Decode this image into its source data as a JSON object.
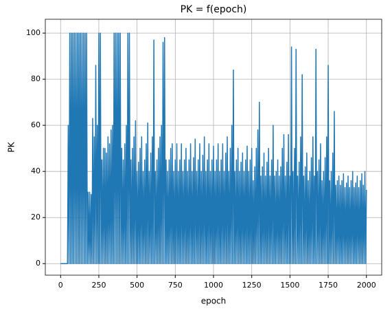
{
  "chart_data": {
    "type": "line",
    "title": "PK = f(epoch)",
    "x_label": "epoch",
    "y_label": "PK",
    "x": [
      0,
      5,
      10,
      15,
      20,
      25,
      30,
      35,
      40,
      45,
      50,
      55,
      60,
      65,
      70,
      75,
      80,
      85,
      90,
      95,
      100,
      105,
      110,
      115,
      120,
      125,
      130,
      135,
      140,
      145,
      150,
      155,
      160,
      165,
      170,
      175,
      180,
      185,
      190,
      195,
      200,
      205,
      210,
      215,
      220,
      225,
      230,
      235,
      240,
      245,
      250,
      255,
      260,
      265,
      270,
      275,
      280,
      285,
      290,
      295,
      300,
      305,
      310,
      315,
      320,
      325,
      330,
      335,
      340,
      345,
      350,
      355,
      360,
      365,
      370,
      375,
      380,
      385,
      390,
      395,
      400,
      405,
      410,
      415,
      420,
      425,
      430,
      435,
      440,
      445,
      450,
      455,
      460,
      465,
      470,
      475,
      480,
      485,
      490,
      495,
      500,
      505,
      510,
      515,
      520,
      525,
      530,
      535,
      540,
      545,
      550,
      555,
      560,
      565,
      570,
      575,
      580,
      585,
      590,
      595,
      600,
      605,
      610,
      615,
      620,
      625,
      630,
      635,
      640,
      645,
      650,
      655,
      660,
      665,
      670,
      675,
      680,
      685,
      690,
      695,
      700,
      705,
      710,
      715,
      720,
      725,
      730,
      735,
      740,
      745,
      750,
      755,
      760,
      765,
      770,
      775,
      780,
      785,
      790,
      795,
      800,
      805,
      810,
      815,
      820,
      825,
      830,
      835,
      840,
      845,
      850,
      855,
      860,
      865,
      870,
      875,
      880,
      885,
      890,
      895,
      900,
      905,
      910,
      915,
      920,
      925,
      930,
      935,
      940,
      945,
      950,
      955,
      960,
      965,
      970,
      975,
      980,
      985,
      990,
      995,
      1000,
      1005,
      1010,
      1015,
      1020,
      1025,
      1030,
      1035,
      1040,
      1045,
      1050,
      1055,
      1060,
      1065,
      1070,
      1075,
      1080,
      1085,
      1090,
      1095,
      1100,
      1105,
      1110,
      1115,
      1120,
      1125,
      1130,
      1135,
      1140,
      1145,
      1150,
      1155,
      1160,
      1165,
      1170,
      1175,
      1180,
      1185,
      1190,
      1195,
      1200,
      1205,
      1210,
      1215,
      1220,
      1225,
      1230,
      1235,
      1240,
      1245,
      1250,
      1255,
      1260,
      1265,
      1270,
      1275,
      1280,
      1285,
      1290,
      1295,
      1300,
      1305,
      1310,
      1315,
      1320,
      1325,
      1330,
      1335,
      1340,
      1345,
      1350,
      1355,
      1360,
      1365,
      1370,
      1375,
      1380,
      1385,
      1390,
      1395,
      1400,
      1405,
      1410,
      1415,
      1420,
      1425,
      1430,
      1435,
      1440,
      1445,
      1450,
      1455,
      1460,
      1465,
      1470,
      1475,
      1480,
      1485,
      1490,
      1495,
      1500,
      1505,
      1510,
      1515,
      1520,
      1525,
      1530,
      1535,
      1540,
      1545,
      1550,
      1555,
      1560,
      1565,
      1570,
      1575,
      1580,
      1585,
      1590,
      1595,
      1600,
      1605,
      1610,
      1615,
      1620,
      1625,
      1630,
      1635,
      1640,
      1645,
      1650,
      1655,
      1660,
      1665,
      1670,
      1675,
      1680,
      1685,
      1690,
      1695,
      1700,
      1705,
      1710,
      1715,
      1720,
      1725,
      1730,
      1735,
      1740,
      1745,
      1750,
      1755,
      1760,
      1765,
      1770,
      1775,
      1780,
      1785,
      1790,
      1795,
      1800,
      1805,
      1810,
      1815,
      1820,
      1825,
      1830,
      1835,
      1840,
      1845,
      1850,
      1855,
      1860,
      1865,
      1870,
      1875,
      1880,
      1885,
      1890,
      1895,
      1900,
      1905,
      1910,
      1915,
      1920,
      1925,
      1930,
      1935,
      1940,
      1945,
      1950,
      1955,
      1960,
      1965,
      1970,
      1975,
      1980,
      1985,
      1990,
      1995,
      2000
    ],
    "series": [
      {
        "name": "PK",
        "color": "#1f77b4",
        "values": [
          0,
          0,
          0,
          0,
          0,
          0,
          0,
          0,
          0,
          0,
          60,
          0,
          100,
          0,
          100,
          0,
          100,
          0,
          100,
          0,
          100,
          0,
          100,
          0,
          100,
          0,
          100,
          0,
          100,
          0,
          100,
          0,
          100,
          0,
          100,
          0,
          31,
          0,
          31,
          0,
          30,
          0,
          63,
          0,
          55,
          0,
          86,
          0,
          60,
          0,
          100,
          0,
          100,
          0,
          45,
          0,
          50,
          0,
          50,
          0,
          48,
          0,
          55,
          0,
          52,
          0,
          58,
          0,
          60,
          0,
          100,
          0,
          100,
          0,
          100,
          0,
          100,
          0,
          100,
          0,
          50,
          0,
          45,
          0,
          52,
          0,
          60,
          0,
          100,
          0,
          100,
          0,
          45,
          0,
          50,
          0,
          55,
          0,
          62,
          0,
          40,
          0,
          44,
          0,
          50,
          0,
          55,
          0,
          40,
          0,
          45,
          0,
          52,
          0,
          61,
          0,
          40,
          0,
          48,
          0,
          55,
          0,
          97,
          0,
          40,
          0,
          45,
          0,
          50,
          0,
          55,
          0,
          60,
          0,
          96,
          0,
          98,
          0,
          45,
          0,
          40,
          0,
          45,
          0,
          50,
          0,
          52,
          0,
          40,
          0,
          45,
          0,
          52,
          0,
          40,
          0,
          45,
          0,
          52,
          0,
          40,
          0,
          45,
          0,
          50,
          0,
          40,
          0,
          45,
          0,
          52,
          0,
          40,
          0,
          46,
          0,
          54,
          0,
          40,
          0,
          45,
          0,
          52,
          0,
          40,
          0,
          47,
          0,
          55,
          0,
          40,
          0,
          45,
          0,
          52,
          0,
          40,
          0,
          45,
          0,
          51,
          0,
          40,
          0,
          45,
          0,
          52,
          0,
          40,
          0,
          45,
          0,
          52,
          0,
          40,
          0,
          48,
          0,
          55,
          0,
          40,
          0,
          50,
          0,
          60,
          0,
          84,
          0,
          40,
          0,
          45,
          0,
          50,
          0,
          40,
          0,
          44,
          0,
          48,
          0,
          40,
          0,
          45,
          0,
          51,
          0,
          40,
          0,
          45,
          0,
          50,
          0,
          36,
          0,
          42,
          0,
          50,
          0,
          58,
          0,
          70,
          0,
          38,
          0,
          42,
          0,
          48,
          0,
          38,
          0,
          44,
          0,
          50,
          0,
          38,
          0,
          45,
          0,
          60,
          0,
          38,
          0,
          40,
          0,
          45,
          0,
          38,
          0,
          42,
          0,
          50,
          0,
          56,
          0,
          38,
          0,
          44,
          0,
          56,
          0,
          38,
          0,
          94,
          0,
          40,
          0,
          50,
          0,
          93,
          0,
          38,
          0,
          44,
          0,
          55,
          0,
          82,
          0,
          38,
          0,
          42,
          0,
          48,
          0,
          36,
          0,
          40,
          0,
          46,
          0,
          55,
          0,
          38,
          0,
          93,
          0,
          40,
          0,
          45,
          0,
          52,
          0,
          36,
          0,
          40,
          0,
          46,
          0,
          55,
          0,
          86,
          0,
          36,
          0,
          40,
          0,
          48,
          0,
          66,
          0,
          34,
          0,
          36,
          0,
          38,
          0,
          34,
          0,
          36,
          0,
          39,
          0,
          33,
          0,
          35,
          0,
          38,
          0,
          33,
          0,
          36,
          0,
          40,
          0,
          33,
          0,
          35,
          0,
          38,
          0,
          33,
          0,
          36,
          0,
          39,
          0,
          34,
          0,
          40,
          0,
          32
        ]
      }
    ],
    "xlim": [
      -100,
      2100
    ],
    "ylim": [
      -5,
      106
    ],
    "xticks": [
      0,
      250,
      500,
      750,
      1000,
      1250,
      1500,
      1750,
      2000
    ],
    "yticks": [
      0,
      20,
      40,
      60,
      80,
      100
    ],
    "grid": true
  }
}
